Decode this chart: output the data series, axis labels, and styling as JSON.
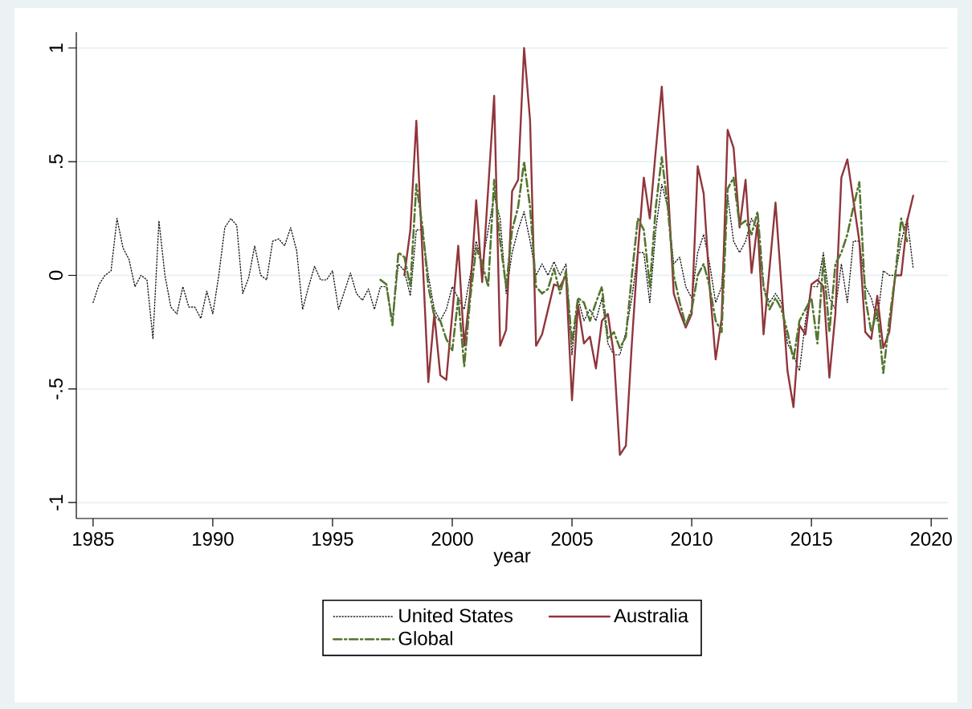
{
  "chart_data": {
    "type": "line",
    "xlabel": "year",
    "xlim": [
      1984.3,
      2020.7
    ],
    "ylim": [
      -1.07,
      1.07
    ],
    "xticks": [
      1985,
      1990,
      1995,
      2000,
      2005,
      2010,
      2015,
      2020
    ],
    "yticks": [
      {
        "value": -1,
        "label": "-1"
      },
      {
        "value": -0.5,
        "label": "-.5"
      },
      {
        "value": 0,
        "label": "0"
      },
      {
        "value": 0.5,
        "label": ".5"
      },
      {
        "value": 1,
        "label": "1"
      }
    ],
    "grid": "y",
    "legend": "bottom",
    "marker": "none",
    "series": [
      {
        "name": "United States",
        "color": "#1a1a1a",
        "line_style": "dotted",
        "x": [
          1985,
          1985.25,
          1985.5,
          1985.75,
          1986,
          1986.25,
          1986.5,
          1986.75,
          1987,
          1987.25,
          1987.5,
          1987.75,
          1988,
          1988.25,
          1988.5,
          1988.75,
          1989,
          1989.25,
          1989.5,
          1989.75,
          1990,
          1990.25,
          1990.5,
          1990.75,
          1991,
          1991.25,
          1991.5,
          1991.75,
          1992,
          1992.25,
          1992.5,
          1992.75,
          1993,
          1993.25,
          1993.5,
          1993.75,
          1994,
          1994.25,
          1994.5,
          1994.75,
          1995,
          1995.25,
          1995.5,
          1995.75,
          1996,
          1996.25,
          1996.5,
          1996.75,
          1997,
          1997.25,
          1997.5,
          1997.75,
          1998,
          1998.25,
          1998.5,
          1998.75,
          1999,
          1999.25,
          1999.5,
          1999.75,
          2000,
          2000.25,
          2000.5,
          2000.75,
          2001,
          2001.25,
          2001.5,
          2001.75,
          2002,
          2002.25,
          2002.5,
          2002.75,
          2003,
          2003.25,
          2003.5,
          2003.75,
          2004,
          2004.25,
          2004.5,
          2004.75,
          2005,
          2005.25,
          2005.5,
          2005.75,
          2006,
          2006.25,
          2006.5,
          2006.75,
          2007,
          2007.25,
          2007.5,
          2007.75,
          2008,
          2008.25,
          2008.5,
          2008.75,
          2009,
          2009.25,
          2009.5,
          2009.75,
          2010,
          2010.25,
          2010.5,
          2010.75,
          2011,
          2011.25,
          2011.5,
          2011.75,
          2012,
          2012.25,
          2012.5,
          2012.75,
          2013,
          2013.25,
          2013.5,
          2013.75,
          2014,
          2014.25,
          2014.5,
          2014.75,
          2015,
          2015.25,
          2015.5,
          2015.75,
          2016,
          2016.25,
          2016.5,
          2016.75,
          2017,
          2017.25,
          2017.5,
          2017.75,
          2018,
          2018.25,
          2018.5,
          2018.75,
          2019,
          2019.25
        ],
        "values": [
          -0.12,
          -0.04,
          0.0,
          0.02,
          0.25,
          0.12,
          0.07,
          -0.05,
          0.0,
          -0.02,
          -0.28,
          0.24,
          0.0,
          -0.14,
          -0.17,
          -0.05,
          -0.14,
          -0.14,
          -0.19,
          -0.07,
          -0.17,
          0.0,
          0.21,
          0.25,
          0.22,
          -0.08,
          -0.01,
          0.13,
          0.0,
          -0.02,
          0.15,
          0.16,
          0.13,
          0.21,
          0.11,
          -0.15,
          -0.05,
          0.04,
          -0.02,
          -0.02,
          0.02,
          -0.15,
          -0.07,
          0.01,
          -0.08,
          -0.11,
          -0.06,
          -0.15,
          -0.05,
          -0.05,
          -0.2,
          0.05,
          0.02,
          -0.09,
          0.2,
          0.2,
          0.0,
          -0.15,
          -0.2,
          -0.15,
          -0.05,
          -0.1,
          -0.15,
          0.0,
          0.15,
          0.05,
          0.2,
          0.35,
          0.25,
          -0.08,
          0.1,
          0.2,
          0.28,
          0.15,
          0.0,
          0.05,
          0.0,
          0.06,
          0.0,
          0.05,
          -0.35,
          -0.1,
          -0.2,
          -0.15,
          -0.2,
          -0.1,
          -0.3,
          -0.35,
          -0.35,
          -0.25,
          -0.1,
          0.1,
          0.1,
          -0.12,
          0.2,
          0.4,
          0.3,
          0.05,
          0.08,
          -0.05,
          -0.1,
          0.1,
          0.18,
          0.05,
          -0.12,
          -0.05,
          0.35,
          0.15,
          0.1,
          0.15,
          0.25,
          0.2,
          -0.05,
          -0.12,
          -0.08,
          -0.12,
          -0.3,
          -0.35,
          -0.42,
          -0.2,
          -0.05,
          -0.05,
          0.1,
          -0.1,
          -0.15,
          0.05,
          -0.12,
          0.15,
          0.15,
          -0.05,
          -0.1,
          -0.2,
          0.02,
          0.0,
          0.0,
          0.15,
          0.25,
          0.03
        ]
      },
      {
        "name": "Australia",
        "color": "#90353b",
        "line_style": "solid",
        "x": [
          1998,
          1998.25,
          1998.5,
          1998.75,
          1999,
          1999.25,
          1999.5,
          1999.75,
          2000,
          2000.25,
          2000.5,
          2000.75,
          2001,
          2001.25,
          2001.5,
          2001.75,
          2002,
          2002.25,
          2002.5,
          2002.75,
          2003,
          2003.25,
          2003.5,
          2003.75,
          2004,
          2004.25,
          2004.5,
          2004.75,
          2005,
          2005.25,
          2005.5,
          2005.75,
          2006,
          2006.25,
          2006.5,
          2006.75,
          2007,
          2007.25,
          2007.5,
          2007.75,
          2008,
          2008.25,
          2008.5,
          2008.75,
          2009,
          2009.25,
          2009.5,
          2009.75,
          2010,
          2010.25,
          2010.5,
          2010.75,
          2011,
          2011.25,
          2011.5,
          2011.75,
          2012,
          2012.25,
          2012.5,
          2012.75,
          2013,
          2013.25,
          2013.5,
          2013.75,
          2014,
          2014.25,
          2014.5,
          2014.75,
          2015,
          2015.25,
          2015.5,
          2015.75,
          2016,
          2016.25,
          2016.5,
          2016.75,
          2017,
          2017.25,
          2017.5,
          2017.75,
          2018,
          2018.25,
          2018.5,
          2018.75,
          2019,
          2019.25
        ],
        "values": [
          0.0,
          0.2,
          0.68,
          0.1,
          -0.47,
          -0.17,
          -0.44,
          -0.46,
          -0.17,
          0.13,
          -0.31,
          -0.07,
          0.33,
          -0.03,
          0.38,
          0.79,
          -0.31,
          -0.24,
          0.37,
          0.42,
          1.0,
          0.68,
          -0.31,
          -0.26,
          -0.15,
          -0.04,
          -0.05,
          0.0,
          -0.55,
          -0.13,
          -0.3,
          -0.27,
          -0.41,
          -0.2,
          -0.17,
          -0.35,
          -0.79,
          -0.75,
          -0.3,
          0.1,
          0.43,
          0.25,
          0.55,
          0.83,
          0.4,
          -0.08,
          -0.16,
          -0.23,
          -0.17,
          0.48,
          0.36,
          -0.05,
          -0.37,
          -0.19,
          0.64,
          0.56,
          0.21,
          0.42,
          0.01,
          0.23,
          -0.26,
          0.03,
          0.32,
          -0.05,
          -0.42,
          -0.58,
          -0.22,
          -0.26,
          -0.04,
          -0.02,
          -0.05,
          -0.45,
          -0.17,
          0.43,
          0.51,
          0.33,
          0.15,
          -0.25,
          -0.28,
          -0.09,
          -0.32,
          -0.25,
          0.0,
          0.0,
          0.24,
          0.35
        ]
      },
      {
        "name": "Global",
        "color": "#55752f",
        "line_style": "dashed",
        "x": [
          1997,
          1997.25,
          1997.5,
          1997.75,
          1998,
          1998.25,
          1998.5,
          1998.75,
          1999,
          1999.25,
          1999.5,
          1999.75,
          2000,
          2000.25,
          2000.5,
          2000.75,
          2001,
          2001.25,
          2001.5,
          2001.75,
          2002,
          2002.25,
          2002.5,
          2002.75,
          2003,
          2003.25,
          2003.5,
          2003.75,
          2004,
          2004.25,
          2004.5,
          2004.75,
          2005,
          2005.25,
          2005.5,
          2005.75,
          2006,
          2006.25,
          2006.5,
          2006.75,
          2007,
          2007.25,
          2007.5,
          2007.75,
          2008,
          2008.25,
          2008.5,
          2008.75,
          2009,
          2009.25,
          2009.5,
          2009.75,
          2010,
          2010.25,
          2010.5,
          2010.75,
          2011,
          2011.25,
          2011.5,
          2011.75,
          2012,
          2012.25,
          2012.5,
          2012.75,
          2013,
          2013.25,
          2013.5,
          2013.75,
          2014,
          2014.25,
          2014.5,
          2014.75,
          2015,
          2015.25,
          2015.5,
          2015.75,
          2016,
          2016.25,
          2016.5,
          2016.75,
          2017,
          2017.25,
          2017.5,
          2017.75,
          2018,
          2018.25,
          2018.5,
          2018.75,
          2019
        ],
        "values": [
          -0.02,
          -0.04,
          -0.22,
          0.1,
          0.08,
          -0.05,
          0.4,
          0.22,
          -0.05,
          -0.18,
          -0.2,
          -0.28,
          -0.33,
          -0.1,
          -0.4,
          -0.1,
          0.12,
          0.05,
          -0.05,
          0.42,
          0.15,
          -0.05,
          0.2,
          0.3,
          0.5,
          0.3,
          -0.05,
          -0.08,
          -0.06,
          0.03,
          -0.08,
          0.02,
          -0.3,
          -0.1,
          -0.12,
          -0.2,
          -0.12,
          -0.05,
          -0.28,
          -0.25,
          -0.32,
          -0.27,
          0.0,
          0.25,
          0.2,
          -0.05,
          0.3,
          0.52,
          0.3,
          0.0,
          -0.12,
          -0.22,
          -0.15,
          0.0,
          0.05,
          -0.05,
          -0.2,
          -0.25,
          0.38,
          0.43,
          0.22,
          0.24,
          0.18,
          0.28,
          -0.05,
          -0.15,
          -0.1,
          -0.15,
          -0.25,
          -0.37,
          -0.2,
          -0.15,
          -0.1,
          -0.3,
          0.07,
          -0.25,
          0.05,
          0.1,
          0.18,
          0.3,
          0.41,
          -0.1,
          -0.25,
          -0.15,
          -0.43,
          -0.2,
          0.0,
          0.25,
          0.15
        ]
      }
    ]
  }
}
